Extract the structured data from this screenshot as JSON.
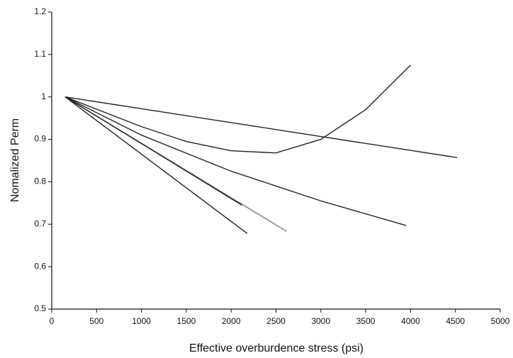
{
  "chart_data": {
    "type": "line",
    "x_label": "Effective overburdence stress (psi)",
    "y_label": "Nomalized Perm",
    "xlim": [
      0,
      5000
    ],
    "xticks": [
      0,
      500,
      1000,
      1500,
      2000,
      2500,
      3000,
      3500,
      4000,
      4500,
      5000
    ],
    "ylim": [
      0.5,
      1.2
    ],
    "yticks": [
      0.5,
      0.6,
      0.7,
      0.8,
      0.9,
      1,
      1.1,
      1.2
    ],
    "series": [
      {
        "color": "#222222",
        "x": [
          150,
          4520
        ],
        "values": [
          1,
          0.857
        ]
      },
      {
        "color": "#222222",
        "x": [
          150,
          1000,
          1500,
          2000,
          2500,
          3000,
          3500,
          4000
        ],
        "values": [
          1,
          0.93,
          0.895,
          0.873,
          0.868,
          0.9,
          0.97,
          1.075
        ]
      },
      {
        "color": "#222222",
        "x": [
          150,
          1000,
          2000,
          3000,
          3950
        ],
        "values": [
          1,
          0.91,
          0.825,
          0.755,
          0.697
        ]
      },
      {
        "color": "#777777",
        "x": [
          150,
          2620
        ],
        "values": [
          1,
          0.683
        ]
      },
      {
        "color": "#222222",
        "x": [
          150,
          2120
        ],
        "values": [
          1,
          0.745
        ]
      },
      {
        "color": "#222222",
        "x": [
          150,
          2180
        ],
        "values": [
          1,
          0.678
        ]
      }
    ]
  }
}
